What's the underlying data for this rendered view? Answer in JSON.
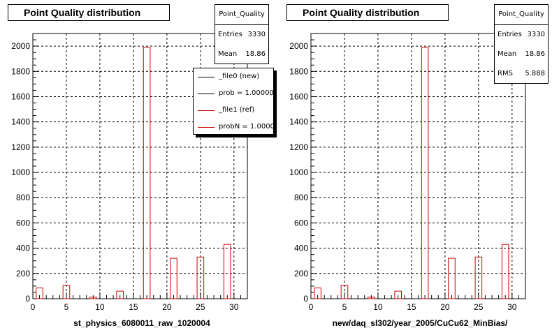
{
  "left_panel": {
    "title": "Point Quality distribution",
    "stats": {
      "name": "Point_Quality",
      "rows": [
        {
          "label": "Entries",
          "value": "3330"
        },
        {
          "label": "Mean",
          "value": "18.86"
        }
      ]
    },
    "legend": [
      {
        "label": "_file0 (new)",
        "color": "#000000"
      },
      {
        "label": "prob = 1.000000",
        "color": "#000000"
      },
      {
        "label": "_file1 (ref)",
        "color": "#cc0000"
      },
      {
        "label": "probN = 1.000000",
        "color": "#cc0000"
      }
    ],
    "xlabel": "st_physics_6080011_raw_1020004"
  },
  "right_panel": {
    "title": "Point Quality distribution",
    "stats": {
      "name": "Point_Quality",
      "rows": [
        {
          "label": "Entries",
          "value": "3330"
        },
        {
          "label": "Mean",
          "value": "18.86"
        },
        {
          "label": "RMS",
          "value": "5.888"
        }
      ]
    },
    "xlabel": "new/daq_sl302/year_2005/CuCu62_MinBias/"
  },
  "chart_data": [
    {
      "type": "bar",
      "title": "Point Quality distribution",
      "xlabel": "st_physics_6080011_raw_1020004",
      "xlim": [
        0,
        32
      ],
      "ylim": [
        0,
        2100
      ],
      "xticks": [
        0,
        5,
        10,
        15,
        20,
        25,
        30
      ],
      "yticks": [
        0,
        200,
        400,
        600,
        800,
        1000,
        1200,
        1400,
        1600,
        1800,
        2000
      ],
      "grid": true,
      "bin_width": 1,
      "bar_color": "#cc0000",
      "bins": [
        1,
        5,
        9,
        13,
        17,
        21,
        25,
        29
      ],
      "values": [
        85,
        105,
        12,
        60,
        1990,
        320,
        330,
        430
      ]
    },
    {
      "type": "bar",
      "title": "Point Quality distribution",
      "xlabel": "new/daq_sl302/year_2005/CuCu62_MinBias/",
      "xlim": [
        0,
        32
      ],
      "ylim": [
        0,
        2100
      ],
      "xticks": [
        0,
        5,
        10,
        15,
        20,
        25,
        30
      ],
      "yticks": [
        0,
        200,
        400,
        600,
        800,
        1000,
        1200,
        1400,
        1600,
        1800,
        2000
      ],
      "grid": true,
      "bin_width": 1,
      "bar_color": "#cc0000",
      "bins": [
        1,
        5,
        9,
        13,
        17,
        21,
        25,
        29
      ],
      "values": [
        85,
        105,
        12,
        60,
        1990,
        320,
        330,
        430
      ]
    }
  ]
}
